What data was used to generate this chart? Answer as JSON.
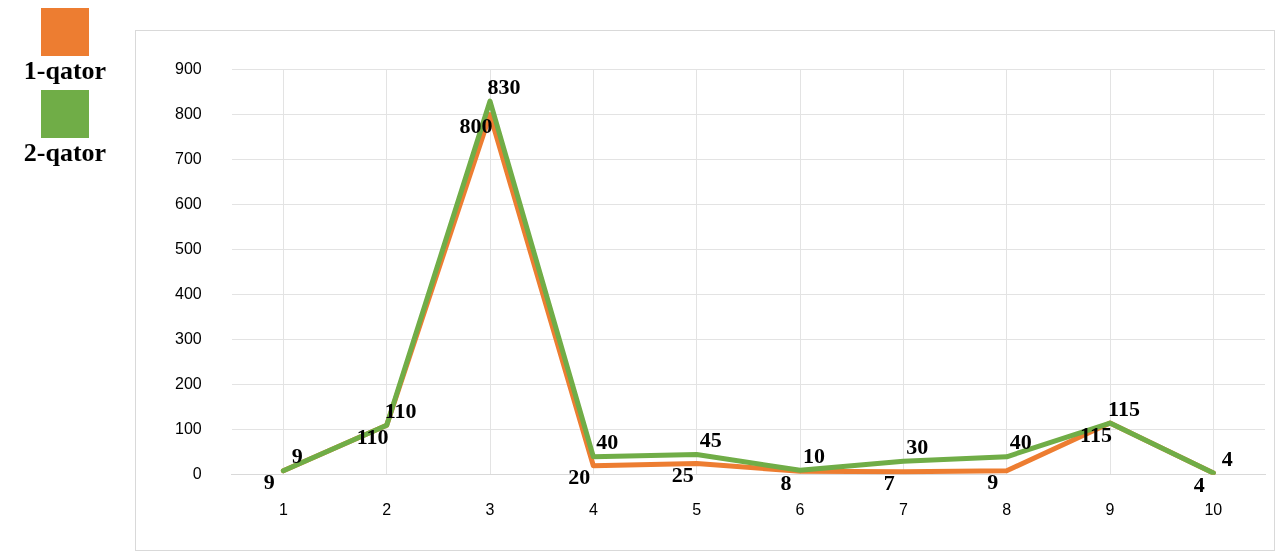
{
  "chart_data": {
    "type": "line",
    "categories": [
      "1",
      "2",
      "3",
      "4",
      "5",
      "6",
      "7",
      "8",
      "9",
      "10"
    ],
    "series": [
      {
        "name": "1-qator",
        "color": "#ed7d31",
        "values": [
          9,
          110,
          800,
          20,
          25,
          8,
          7,
          9,
          115,
          4
        ]
      },
      {
        "name": "2-qator",
        "color": "#70ad47",
        "values": [
          9,
          110,
          830,
          40,
          45,
          10,
          30,
          40,
          115,
          4
        ]
      }
    ],
    "ylim": [
      0,
      900
    ],
    "yticks": [
      0,
      100,
      200,
      300,
      400,
      500,
      600,
      700,
      800,
      900
    ],
    "grid": true,
    "legend": "left",
    "marker": "none",
    "data_labels": true
  }
}
